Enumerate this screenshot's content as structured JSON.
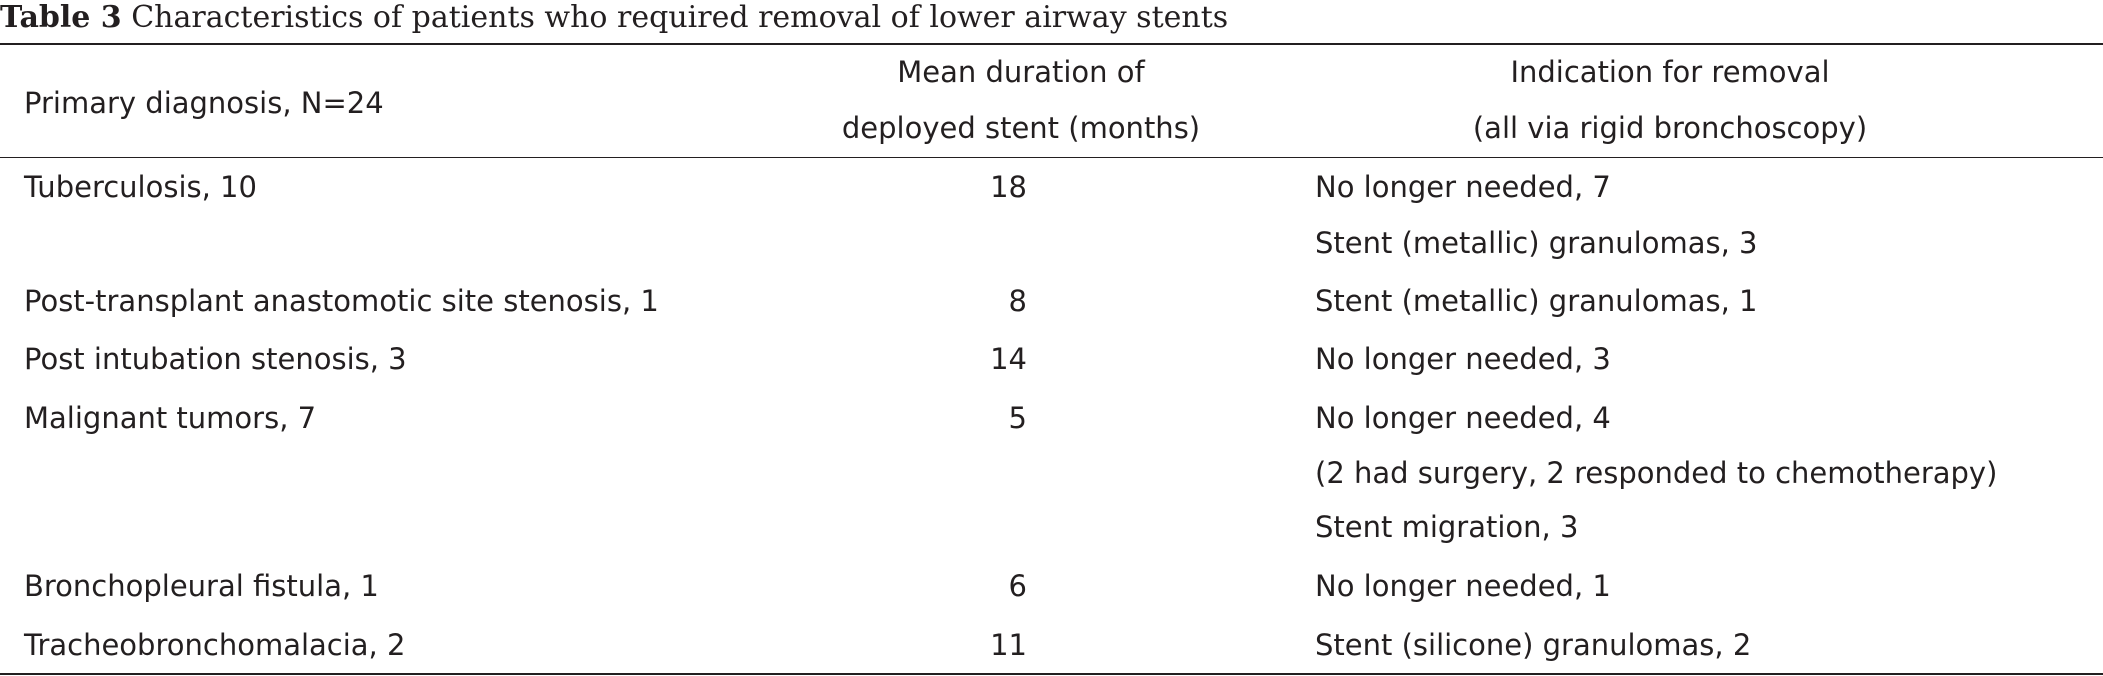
{
  "caption": {
    "label": "Table 3",
    "text": " Characteristics of patients who required removal of lower airway stents"
  },
  "header": {
    "col1": "Primary diagnosis, N=24",
    "col2_line1": "Mean duration of",
    "col2_line2": "deployed stent (months)",
    "col3_line1": "Indication for removal",
    "col3_line2": "(all via rigid bronchoscopy)"
  },
  "rows": [
    {
      "diagnosis": "Tuberculosis, 10",
      "duration": "18",
      "indications": [
        "No longer needed, 7",
        "Stent (metallic) granulomas, 3"
      ]
    },
    {
      "diagnosis": "Post-transplant anastomotic site stenosis, 1",
      "duration": "8",
      "indications": [
        "Stent (metallic) granulomas, 1"
      ]
    },
    {
      "diagnosis": "Post intubation stenosis, 3",
      "duration": "14",
      "indications": [
        "No longer needed, 3"
      ]
    },
    {
      "diagnosis": "Malignant tumors, 7",
      "duration": "5",
      "indications": [
        "No longer needed, 4",
        "(2 had surgery, 2 responded to chemotherapy)",
        "Stent migration, 3"
      ]
    },
    {
      "diagnosis": "Bronchopleural fistula, 1",
      "duration": "6",
      "indications": [
        "No longer needed, 1"
      ]
    },
    {
      "diagnosis": "Tracheobronchomalacia, 2",
      "duration": "11",
      "indications": [
        "Stent (silicone) granulomas, 2"
      ]
    }
  ]
}
